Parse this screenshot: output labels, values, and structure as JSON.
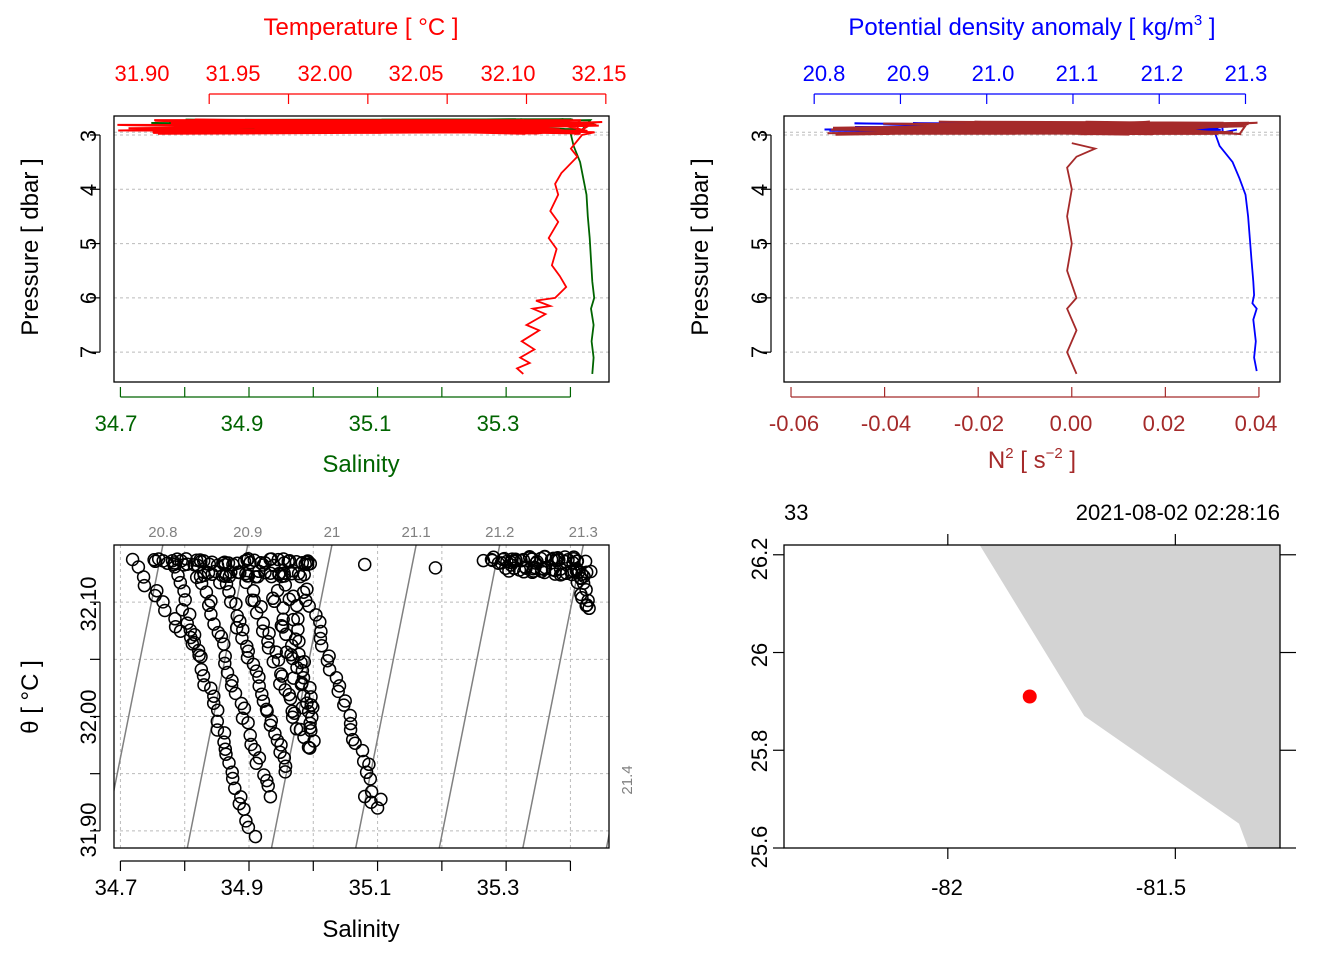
{
  "colors": {
    "temperature": "#ff0000",
    "salinity": "#006400",
    "density": "#0000ff",
    "n2": "#a52a2a",
    "isopycnal": "#808080",
    "grid": "#bbbbbb",
    "land": "#d3d3d3",
    "station": "#ff0000",
    "axis": "#000000"
  },
  "chart_data": [
    {
      "id": "ts_profile",
      "type": "line",
      "top_axis": {
        "label": "Temperature [ °C ]",
        "ticks": [
          "31.90",
          "31.95",
          "32.00",
          "32.05",
          "32.10",
          "32.15"
        ],
        "tick_values": [
          31.9,
          31.95,
          32.0,
          32.05,
          32.1,
          32.15
        ],
        "range": [
          31.84,
          32.152
        ]
      },
      "bottom_axis": {
        "label": "Salinity",
        "ticks": [
          "34.7",
          "34.9",
          "35.1",
          "35.3"
        ],
        "tick_values": [
          34.7,
          34.9,
          35.1,
          35.3
        ],
        "minor_tick_values": [
          34.8,
          35.0,
          35.2,
          35.4
        ],
        "range": [
          34.69,
          35.46
        ]
      },
      "y_axis": {
        "label": "Pressure [ dbar ]",
        "ticks": [
          "3",
          "4",
          "5",
          "6",
          "7"
        ],
        "tick_values": [
          3,
          4,
          5,
          6,
          7
        ],
        "range": [
          7.55,
          2.65
        ],
        "reversed": true
      },
      "grid": true,
      "series": [
        {
          "axis": "top",
          "color_key": "temperature",
          "surface_x_range": [
            31.84,
            32.15
          ],
          "surface_p_range": [
            2.72,
            2.98
          ],
          "points": [
            [
              32.143,
              2.95
            ],
            [
              32.135,
              3.0
            ],
            [
              32.128,
              3.25
            ],
            [
              32.132,
              3.4
            ],
            [
              32.122,
              3.7
            ],
            [
              32.118,
              3.9
            ],
            [
              32.12,
              4.1
            ],
            [
              32.115,
              4.4
            ],
            [
              32.12,
              4.6
            ],
            [
              32.114,
              4.9
            ],
            [
              32.119,
              5.1
            ],
            [
              32.116,
              5.4
            ],
            [
              32.121,
              5.6
            ],
            [
              32.125,
              5.8
            ],
            [
              32.118,
              6.0
            ],
            [
              32.106,
              6.05
            ],
            [
              32.115,
              6.15
            ],
            [
              32.104,
              6.2
            ],
            [
              32.112,
              6.3
            ],
            [
              32.1,
              6.5
            ],
            [
              32.108,
              6.6
            ],
            [
              32.097,
              6.8
            ],
            [
              32.105,
              6.95
            ],
            [
              32.096,
              7.1
            ],
            [
              32.102,
              7.2
            ],
            [
              32.094,
              7.3
            ],
            [
              32.098,
              7.4
            ]
          ]
        },
        {
          "axis": "bottom",
          "color_key": "salinity",
          "surface_x_range": [
            34.72,
            35.44
          ],
          "surface_p_range": [
            2.7,
            2.95
          ],
          "points": [
            [
              35.4,
              2.95
            ],
            [
              35.405,
              3.2
            ],
            [
              35.415,
              3.5
            ],
            [
              35.42,
              3.8
            ],
            [
              35.425,
              4.1
            ],
            [
              35.427,
              4.5
            ],
            [
              35.43,
              4.9
            ],
            [
              35.432,
              5.3
            ],
            [
              35.434,
              5.7
            ],
            [
              35.437,
              6.0
            ],
            [
              35.432,
              6.2
            ],
            [
              35.436,
              6.5
            ],
            [
              35.433,
              6.8
            ],
            [
              35.436,
              7.1
            ],
            [
              35.434,
              7.4
            ]
          ]
        }
      ]
    },
    {
      "id": "density_profile",
      "type": "line",
      "top_axis": {
        "label": "Potential density anomaly [ kg/m3 ]",
        "ticks": [
          "20.8",
          "20.9",
          "21.0",
          "21.1",
          "21.2",
          "21.3"
        ],
        "tick_values": [
          20.8,
          20.9,
          21.0,
          21.1,
          21.2,
          21.3
        ],
        "range": [
          20.765,
          21.34
        ]
      },
      "bottom_axis": {
        "label": "N2 [ s−2 ]",
        "ticks": [
          "-0.06",
          "-0.04",
          "-0.02",
          "0.00",
          "0.02",
          "0.04"
        ],
        "tick_values": [
          -0.06,
          -0.04,
          -0.02,
          0.0,
          0.02,
          0.04
        ],
        "range": [
          -0.0615,
          0.0445
        ]
      },
      "y_axis": {
        "label": "Pressure [ dbar ]",
        "ticks": [
          "3",
          "4",
          "5",
          "6",
          "7"
        ],
        "tick_values": [
          3,
          4,
          5,
          6,
          7
        ],
        "range": [
          7.55,
          2.65
        ],
        "reversed": true
      },
      "grid": true,
      "series": [
        {
          "axis": "top",
          "color_key": "density",
          "surface_x_range": [
            20.8,
            21.28
          ],
          "surface_p_range": [
            2.78,
            2.95
          ],
          "points": [
            [
              21.29,
              2.9
            ],
            [
              21.265,
              2.98
            ],
            [
              21.27,
              3.2
            ],
            [
              21.285,
              3.5
            ],
            [
              21.293,
              3.8
            ],
            [
              21.3,
              4.1
            ],
            [
              21.303,
              4.5
            ],
            [
              21.305,
              4.9
            ],
            [
              21.307,
              5.3
            ],
            [
              21.309,
              5.7
            ],
            [
              21.31,
              5.95
            ],
            [
              21.308,
              6.1
            ],
            [
              21.313,
              6.2
            ],
            [
              21.309,
              6.4
            ],
            [
              21.312,
              6.8
            ],
            [
              21.31,
              7.1
            ],
            [
              21.313,
              7.35
            ]
          ]
        },
        {
          "axis": "bottom",
          "color_key": "n2",
          "surface_x_range": [
            -0.058,
            0.04
          ],
          "surface_p_range": [
            2.75,
            3.0
          ],
          "points": [
            [
              0.0,
              3.15
            ],
            [
              0.005,
              3.25
            ],
            [
              0.001,
              3.4
            ],
            [
              -0.001,
              3.6
            ],
            [
              0.0,
              4.0
            ],
            [
              -0.001,
              4.5
            ],
            [
              0.0,
              5.0
            ],
            [
              -0.001,
              5.5
            ],
            [
              0.001,
              6.0
            ],
            [
              -0.001,
              6.2
            ],
            [
              0.001,
              6.6
            ],
            [
              -0.001,
              7.0
            ],
            [
              0.001,
              7.4
            ]
          ]
        }
      ]
    },
    {
      "id": "ts_diagram",
      "type": "scatter",
      "xlabel": "Salinity",
      "ylabel": "θ [ °C ]",
      "x_ticks": [
        "34.7",
        "34.9",
        "35.1",
        "35.3"
      ],
      "x_tick_values": [
        34.7,
        34.9,
        35.1,
        35.3
      ],
      "x_minor_tick_values": [
        34.8,
        35.0,
        35.2,
        35.4
      ],
      "y_ticks": [
        "31.90",
        "32.00",
        "32.10"
      ],
      "y_tick_values": [
        31.9,
        32.0,
        32.1
      ],
      "y_minor_tick_values": [
        31.95,
        32.05
      ],
      "xlim": [
        34.69,
        35.46
      ],
      "ylim": [
        31.885,
        32.15
      ],
      "grid": true,
      "isopycnals": {
        "labels": [
          "20.8",
          "20.9",
          "21",
          "21.1",
          "21.2",
          "21.3",
          "21.4"
        ],
        "levels": [
          20.8,
          20.9,
          21.0,
          21.1,
          21.2,
          21.3,
          21.4
        ],
        "S_at_top": [
          34.766,
          34.898,
          35.029,
          35.16,
          35.29,
          35.42,
          35.55
        ],
        "S_at_bottom": [
          34.672,
          34.804,
          34.935,
          35.066,
          35.196,
          35.326,
          35.456
        ]
      },
      "clusters": [
        {
          "start": [
            34.72,
            32.135
          ],
          "end": [
            34.82,
            32.055
          ],
          "count": 14
        },
        {
          "start": [
            34.78,
            32.135
          ],
          "end": [
            34.9,
            31.905
          ],
          "count": 36
        },
        {
          "start": [
            34.82,
            32.13
          ],
          "end": [
            34.93,
            31.93
          ],
          "count": 30
        },
        {
          "start": [
            34.86,
            32.12
          ],
          "end": [
            34.96,
            31.95
          ],
          "count": 30
        },
        {
          "start": [
            34.9,
            32.115
          ],
          "end": [
            34.99,
            31.97
          ],
          "count": 28
        },
        {
          "start": [
            34.94,
            32.11
          ],
          "end": [
            35.0,
            31.98
          ],
          "count": 24
        },
        {
          "start": [
            34.96,
            32.12
          ],
          "end": [
            35.0,
            32.0
          ],
          "count": 20
        },
        {
          "start": [
            34.98,
            32.12
          ],
          "end": [
            35.1,
            31.93
          ],
          "count": 30
        },
        {
          "start": [
            34.75,
            32.135
          ],
          "end": [
            35.0,
            32.135
          ],
          "count": 48
        },
        {
          "start": [
            34.82,
            32.125
          ],
          "end": [
            34.98,
            32.125
          ],
          "count": 30
        },
        {
          "start": [
            35.27,
            32.137
          ],
          "end": [
            35.42,
            32.137
          ],
          "count": 40
        },
        {
          "start": [
            35.3,
            32.13
          ],
          "end": [
            35.43,
            32.125
          ],
          "count": 34
        },
        {
          "start": [
            35.41,
            32.125
          ],
          "end": [
            35.43,
            32.095
          ],
          "count": 12
        }
      ],
      "extra_points": [
        [
          35.09,
          31.925
        ],
        [
          35.1,
          31.92
        ],
        [
          35.08,
          31.93
        ],
        [
          34.91,
          31.895
        ],
        [
          35.08,
          32.133
        ],
        [
          35.19,
          32.13
        ],
        [
          34.99,
          32.135
        ]
      ]
    },
    {
      "id": "station_map",
      "type": "map",
      "header_left": "33",
      "header_right": "2021-08-02 02:28:16",
      "x_ticks": [
        "-82",
        "-81.5"
      ],
      "x_tick_values": [
        -82,
        -81.5
      ],
      "y_ticks": [
        "25.6",
        "25.8",
        "26",
        "26.2"
      ],
      "y_tick_values": [
        25.6,
        25.8,
        26.0,
        26.2
      ],
      "xlim": [
        -82.36,
        -81.27
      ],
      "ylim": [
        25.6,
        26.22
      ],
      "coastline_polygon": [
        [
          -81.93,
          26.22
        ],
        [
          -81.27,
          26.22
        ],
        [
          -81.27,
          25.6
        ],
        [
          -81.34,
          25.6
        ],
        [
          -81.36,
          25.65
        ],
        [
          -81.7,
          25.87
        ],
        [
          -81.93,
          26.22
        ]
      ],
      "station": {
        "lon": -81.82,
        "lat": 25.91
      }
    }
  ]
}
